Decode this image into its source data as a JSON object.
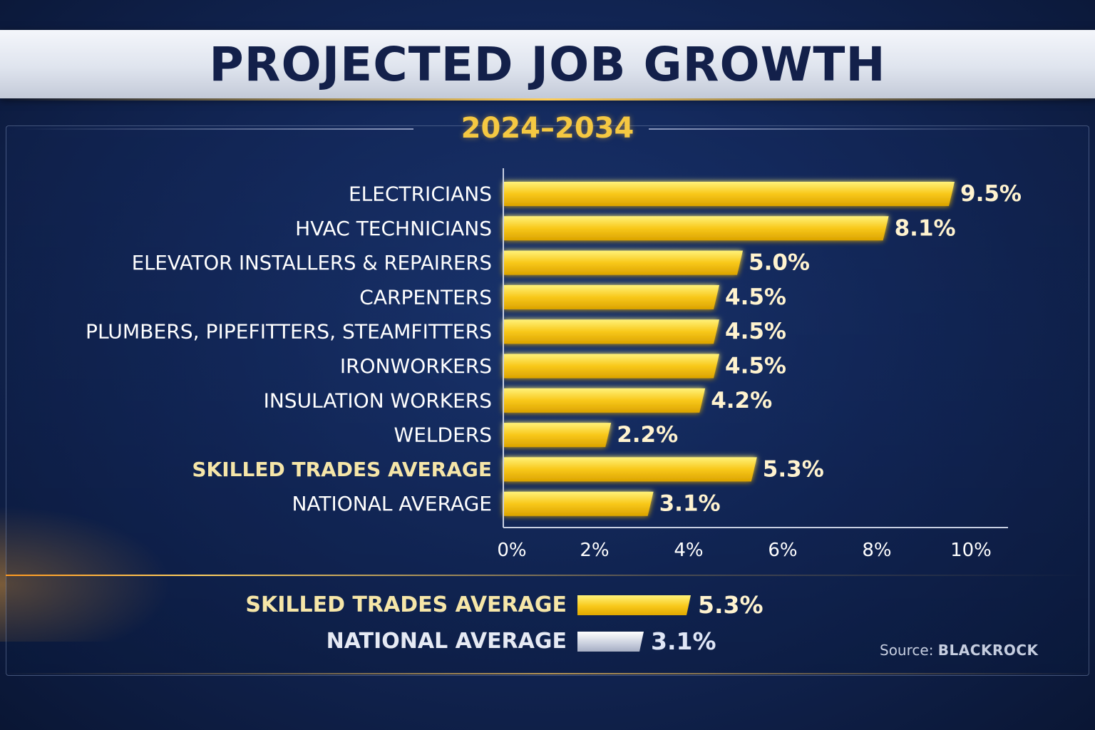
{
  "chart_data": {
    "type": "bar",
    "orientation": "horizontal",
    "title": "PROJECTED JOB GROWTH",
    "subtitle": "2024–2034",
    "categories": [
      "ELECTRICIANS",
      "HVAC TECHNICIANS",
      "ELEVATOR INSTALLERS & REPAIRERS",
      "CARPENTERS",
      "PLUMBERS, PIPEFITTERS, STEAMFITTERS",
      "IRONWORKERS",
      "INSULATION WORKERS",
      "WELDERS",
      "SKILLED TRADES AVERAGE",
      "NATIONAL AVERAGE"
    ],
    "values": [
      9.5,
      8.1,
      5.0,
      4.5,
      4.5,
      4.5,
      4.2,
      2.2,
      5.3,
      3.1
    ],
    "value_labels": [
      "9.5%",
      "8.1%",
      "5.0%",
      "4.5%",
      "4.5%",
      "4.5%",
      "4.2%",
      "2.2%",
      "5.3%",
      "3.1%"
    ],
    "highlighted_categories": [
      "SKILLED TRADES AVERAGE"
    ],
    "xlim": [
      0,
      10
    ],
    "xticks": [
      0,
      2,
      4,
      6,
      8,
      10
    ],
    "xtick_labels": [
      "0%",
      "2%",
      "4%",
      "6%",
      "8%",
      "10%"
    ],
    "xlabel": "",
    "ylabel": "",
    "grid": false,
    "bar_color": "#f8c81a"
  },
  "comparison": [
    {
      "label": "SKILLED TRADES AVERAGE",
      "value": 5.3,
      "value_label": "5.3%",
      "color": "gold"
    },
    {
      "label": "NATIONAL AVERAGE",
      "value": 3.1,
      "value_label": "3.1%",
      "color": "silver"
    }
  ],
  "source": {
    "prefix": "Source: ",
    "brand": "BLACKROCK"
  },
  "colors": {
    "accent": "#f5c842",
    "title": "#13204a",
    "background": "#13285a"
  }
}
